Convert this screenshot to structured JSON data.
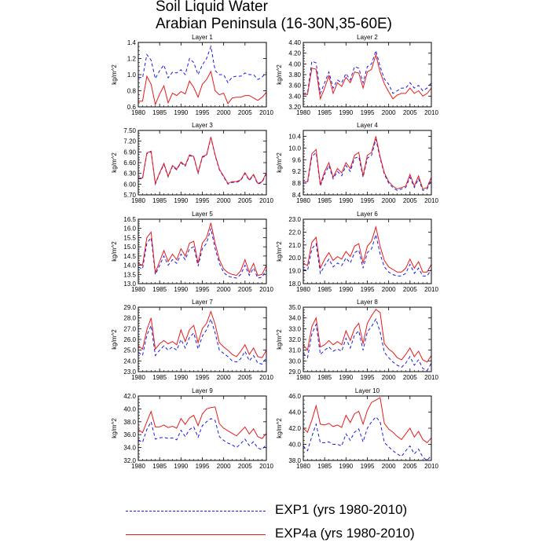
{
  "title_lines": [
    "Soil Liquid Water",
    "Arabian Peninsula (16-30N,35-60E)"
  ],
  "colors": {
    "exp1": "#1a1ae6",
    "exp4a": "#e61a1a"
  },
  "legend": [
    {
      "label": "EXP1 (yrs 1980-2010)",
      "style": "dashed",
      "color": "#1a1ae6"
    },
    {
      "label": "EXP4a (yrs 1980-2010)",
      "style": "solid",
      "color": "#e61a1a"
    }
  ],
  "chart_data": {
    "type": "line",
    "x": [
      1980,
      1981,
      1982,
      1983,
      1984,
      1985,
      1986,
      1987,
      1988,
      1989,
      1990,
      1991,
      1992,
      1993,
      1994,
      1995,
      1996,
      1997,
      1998,
      1999,
      2000,
      2001,
      2002,
      2003,
      2004,
      2005,
      2006,
      2007,
      2008,
      2009,
      2010
    ],
    "xlim": [
      1980,
      2010
    ],
    "xticks": [
      "1980",
      "1985",
      "1990",
      "1995",
      "2000",
      "2005",
      "2010"
    ],
    "ylabel": "kg/m^2",
    "panels": [
      {
        "title": "Layer 1",
        "ylim": [
          0.6,
          1.4
        ],
        "yticks": [
          "0.6",
          "0.8",
          "1.0",
          "1.2",
          "1.4"
        ],
        "series": [
          {
            "name": "EXP1",
            "values": [
              0.97,
              0.96,
              1.25,
              1.18,
              0.95,
              1.05,
              1.12,
              0.96,
              1.03,
              1.02,
              1.06,
              1.0,
              1.2,
              1.15,
              1.0,
              1.12,
              1.2,
              1.35,
              1.05,
              1.0,
              1.0,
              0.9,
              0.97,
              0.98,
              0.98,
              1.02,
              1.0,
              1.0,
              0.94,
              0.97,
              1.03
            ]
          },
          {
            "name": "EXP4a",
            "values": [
              0.67,
              0.67,
              0.98,
              0.88,
              0.63,
              0.76,
              0.86,
              0.65,
              0.77,
              0.74,
              0.79,
              0.76,
              0.92,
              0.84,
              0.72,
              0.88,
              0.94,
              1.04,
              0.8,
              0.75,
              0.77,
              0.64,
              0.71,
              0.72,
              0.72,
              0.74,
              0.74,
              0.71,
              0.68,
              0.72,
              0.78
            ]
          }
        ]
      },
      {
        "title": "Layer 2",
        "ylim": [
          3.2,
          4.4
        ],
        "yticks": [
          "3.20",
          "3.40",
          "3.60",
          "3.80",
          "4.00",
          "4.20",
          "4.40"
        ],
        "series": [
          {
            "name": "EXP1",
            "values": [
              3.45,
              3.45,
              4.05,
              4.02,
              3.45,
              3.65,
              3.85,
              3.55,
              3.7,
              3.65,
              3.82,
              3.7,
              3.95,
              3.92,
              3.65,
              3.95,
              4.0,
              4.25,
              3.95,
              3.72,
              3.62,
              3.45,
              3.5,
              3.55,
              3.55,
              3.65,
              3.55,
              3.6,
              3.5,
              3.55,
              3.65
            ]
          },
          {
            "name": "EXP4a",
            "values": [
              3.43,
              3.43,
              3.92,
              3.9,
              3.35,
              3.55,
              3.78,
              3.45,
              3.65,
              3.58,
              3.75,
              3.65,
              3.85,
              3.83,
              3.55,
              3.85,
              3.9,
              4.17,
              3.85,
              3.63,
              3.48,
              3.35,
              3.42,
              3.45,
              3.45,
              3.55,
              3.45,
              3.5,
              3.4,
              3.45,
              3.55
            ]
          }
        ]
      },
      {
        "title": "Layer 3",
        "ylim": [
          5.7,
          7.5
        ],
        "yticks": [
          "5.70",
          "6.00",
          "6.30",
          "6.60",
          "6.90",
          "7.20",
          "7.50"
        ],
        "series": [
          {
            "name": "EXP1",
            "values": [
              6.15,
              6.15,
              6.85,
              6.9,
              6.0,
              6.3,
              6.55,
              6.2,
              6.5,
              6.4,
              6.6,
              6.5,
              6.8,
              6.75,
              6.3,
              6.75,
              6.8,
              7.3,
              6.8,
              6.4,
              6.2,
              6.0,
              6.05,
              6.05,
              6.1,
              6.3,
              6.1,
              6.25,
              6.0,
              6.05,
              6.3
            ]
          },
          {
            "name": "EXP4a",
            "values": [
              6.17,
              6.17,
              6.87,
              6.92,
              6.02,
              6.32,
              6.58,
              6.22,
              6.52,
              6.42,
              6.62,
              6.52,
              6.82,
              6.77,
              6.32,
              6.77,
              6.82,
              7.32,
              6.82,
              6.42,
              6.22,
              6.02,
              6.07,
              6.07,
              6.12,
              6.32,
              6.12,
              6.27,
              6.02,
              6.07,
              6.32
            ]
          }
        ]
      },
      {
        "title": "Layer 4",
        "ylim": [
          8.4,
          10.6
        ],
        "yticks": [
          "8.4",
          "8.8",
          "9.2",
          "9.6",
          "10.0",
          "10.4"
        ],
        "series": [
          {
            "name": "EXP1",
            "values": [
              8.8,
              8.8,
              9.7,
              9.85,
              8.7,
              9.1,
              9.4,
              8.95,
              9.2,
              9.05,
              9.4,
              9.2,
              9.65,
              9.7,
              9.0,
              9.65,
              9.75,
              10.3,
              9.65,
              9.1,
              8.8,
              8.65,
              8.55,
              8.6,
              8.65,
              9.0,
              8.65,
              8.95,
              8.55,
              8.6,
              8.9
            ]
          },
          {
            "name": "EXP4a",
            "values": [
              8.85,
              8.85,
              9.8,
              9.95,
              8.75,
              9.2,
              9.5,
              9.0,
              9.3,
              9.15,
              9.5,
              9.3,
              9.75,
              9.85,
              9.05,
              9.75,
              9.85,
              10.4,
              9.7,
              9.15,
              8.85,
              8.7,
              8.6,
              8.65,
              8.7,
              9.1,
              8.7,
              9.05,
              8.6,
              8.65,
              9.0
            ]
          }
        ]
      },
      {
        "title": "Layer 5",
        "ylim": [
          13.0,
          16.5
        ],
        "yticks": [
          "13.0",
          "13.5",
          "14.0",
          "14.5",
          "15.0",
          "15.5",
          "16.0",
          "16.5"
        ],
        "series": [
          {
            "name": "EXP1",
            "values": [
              13.9,
              13.8,
              15.2,
              15.5,
              13.5,
              14.0,
              14.5,
              14.0,
              14.3,
              14.1,
              14.6,
              14.3,
              14.9,
              15.0,
              13.95,
              14.9,
              15.2,
              16.0,
              14.9,
              14.1,
              13.6,
              13.4,
              13.35,
              13.3,
              13.5,
              14.0,
              13.45,
              13.85,
              13.3,
              13.35,
              13.75
            ]
          },
          {
            "name": "EXP4a",
            "values": [
              14.1,
              14.0,
              15.5,
              15.8,
              13.6,
              14.2,
              14.8,
              14.2,
              14.6,
              14.3,
              14.9,
              14.5,
              15.2,
              15.3,
              14.1,
              15.2,
              15.5,
              16.3,
              15.2,
              14.3,
              13.8,
              13.6,
              13.5,
              13.45,
              13.7,
              14.3,
              13.6,
              14.1,
              13.45,
              13.5,
              14.0
            ]
          }
        ]
      },
      {
        "title": "Layer 6",
        "ylim": [
          18.0,
          23.0
        ],
        "yticks": [
          "18.0",
          "19.0",
          "20.0",
          "21.0",
          "22.0",
          "23.0"
        ],
        "series": [
          {
            "name": "EXP1",
            "values": [
              19.1,
              19.0,
              20.7,
              21.1,
              18.8,
              19.4,
              19.9,
              19.3,
              19.6,
              19.4,
              20.0,
              19.6,
              20.4,
              20.6,
              19.2,
              20.4,
              20.7,
              21.8,
              20.3,
              19.3,
              18.9,
              18.7,
              18.6,
              18.6,
              18.8,
              19.5,
              18.8,
              19.2,
              18.6,
              18.6,
              19.1
            ]
          },
          {
            "name": "EXP4a",
            "values": [
              19.6,
              19.4,
              21.2,
              21.6,
              19.2,
              19.9,
              20.4,
              19.8,
              20.1,
              19.9,
              20.5,
              20.1,
              20.9,
              21.1,
              19.6,
              20.9,
              21.3,
              22.4,
              20.9,
              19.8,
              19.3,
              19.1,
              18.9,
              18.9,
              19.2,
              19.9,
              19.2,
              19.7,
              18.9,
              18.9,
              19.5
            ]
          }
        ]
      },
      {
        "title": "Layer 7",
        "ylim": [
          23.0,
          29.0
        ],
        "yticks": [
          "23.0",
          "24.0",
          "25.0",
          "26.0",
          "27.0",
          "28.0",
          "29.0"
        ],
        "series": [
          {
            "name": "EXP1",
            "values": [
              24.8,
              24.5,
              26.4,
              27.3,
              24.5,
              25.0,
              25.4,
              25.0,
              25.3,
              25.0,
              26.0,
              25.2,
              26.2,
              26.6,
              25.1,
              26.3,
              26.9,
              27.9,
              26.6,
              25.0,
              24.7,
              24.4,
              24.0,
              23.9,
              24.2,
              24.9,
              24.0,
              24.5,
              23.8,
              23.7,
              24.3
            ]
          },
          {
            "name": "EXP4a",
            "values": [
              25.4,
              25.1,
              26.9,
              28.0,
              25.1,
              25.6,
              25.9,
              25.6,
              25.8,
              25.5,
              26.9,
              25.8,
              26.9,
              27.3,
              25.7,
              27.0,
              27.5,
              28.6,
              27.4,
              25.7,
              25.3,
              25.0,
              24.6,
              24.4,
              24.9,
              25.5,
              24.6,
              25.2,
              24.4,
              24.3,
              25.0
            ]
          }
        ]
      },
      {
        "title": "Layer 8",
        "ylim": [
          29.0,
          35.0
        ],
        "yticks": [
          "29.0",
          "30.0",
          "31.0",
          "32.0",
          "33.0",
          "34.0",
          "35.0"
        ],
        "series": [
          {
            "name": "EXP1",
            "values": [
              30.7,
              30.3,
              32.5,
              33.4,
              30.6,
              31.0,
              31.3,
              30.9,
              31.1,
              30.9,
              32.1,
              31.2,
              32.4,
              32.8,
              31.0,
              32.7,
              33.2,
              33.9,
              32.7,
              30.8,
              30.3,
              29.9,
              29.6,
              29.4,
              29.8,
              30.4,
              29.6,
              30.1,
              29.3,
              29.1,
              29.8
            ]
          },
          {
            "name": "EXP4a",
            "values": [
              31.5,
              31.0,
              33.2,
              34.0,
              31.3,
              31.5,
              31.9,
              31.5,
              31.8,
              31.5,
              32.8,
              31.9,
              33.0,
              33.5,
              31.6,
              33.5,
              34.2,
              34.8,
              34.5,
              31.6,
              31.1,
              30.8,
              30.3,
              30.1,
              30.6,
              31.2,
              30.4,
              30.9,
              30.1,
              29.9,
              30.5
            ]
          }
        ]
      },
      {
        "title": "Layer 9",
        "ylim": [
          32.0,
          42.0
        ],
        "yticks": [
          "32.0",
          "34.0",
          "36.0",
          "38.0",
          "40.0",
          "42.0"
        ],
        "series": [
          {
            "name": "EXP1",
            "values": [
              35.2,
              34.8,
              36.8,
              38.0,
              35.3,
              35.5,
              35.6,
              35.4,
              35.5,
              35.2,
              36.7,
              35.7,
              36.8,
              37.2,
              35.6,
              37.4,
              38.0,
              38.5,
              38.2,
              35.7,
              35.1,
              34.7,
              34.4,
              34.0,
              34.6,
              35.3,
              34.3,
              34.9,
              33.9,
              33.7,
              34.5
            ]
          },
          {
            "name": "EXP4a",
            "values": [
              36.8,
              36.3,
              38.0,
              39.6,
              37.2,
              37.2,
              37.5,
              37.1,
              37.3,
              37.0,
              38.5,
              37.6,
              38.6,
              39.0,
              37.4,
              39.2,
              40.0,
              40.2,
              40.3,
              37.7,
              37.0,
              36.6,
              36.2,
              35.8,
              36.5,
              37.2,
              36.1,
              36.9,
              35.7,
              35.4,
              36.2
            ]
          }
        ]
      },
      {
        "title": "Layer 10",
        "ylim": [
          38.0,
          46.0
        ],
        "yticks": [
          "38.0",
          "40.0",
          "42.0",
          "44.0",
          "46.0"
        ],
        "series": [
          {
            "name": "EXP1",
            "values": [
              39.8,
              39.2,
              41.0,
              42.5,
              40.2,
              40.2,
              40.3,
              40.0,
              40.0,
              39.8,
              41.3,
              40.5,
              41.5,
              41.9,
              40.3,
              42.0,
              42.8,
              43.4,
              42.8,
              40.2,
              39.7,
              39.2,
              38.8,
              38.5,
              39.2,
              39.8,
              38.8,
              39.4,
              38.4,
              38.0,
              38.6
            ]
          },
          {
            "name": "EXP4a",
            "values": [
              42.0,
              41.5,
              43.0,
              44.8,
              42.5,
              42.4,
              42.6,
              42.2,
              42.4,
              42.1,
              43.6,
              42.7,
              43.8,
              44.1,
              42.5,
              44.2,
              45.2,
              45.5,
              45.8,
              42.6,
              41.9,
              41.5,
              41.0,
              40.6,
              41.3,
              42.0,
              40.9,
              41.6,
              40.6,
              40.2,
              40.8
            ]
          }
        ]
      }
    ]
  }
}
